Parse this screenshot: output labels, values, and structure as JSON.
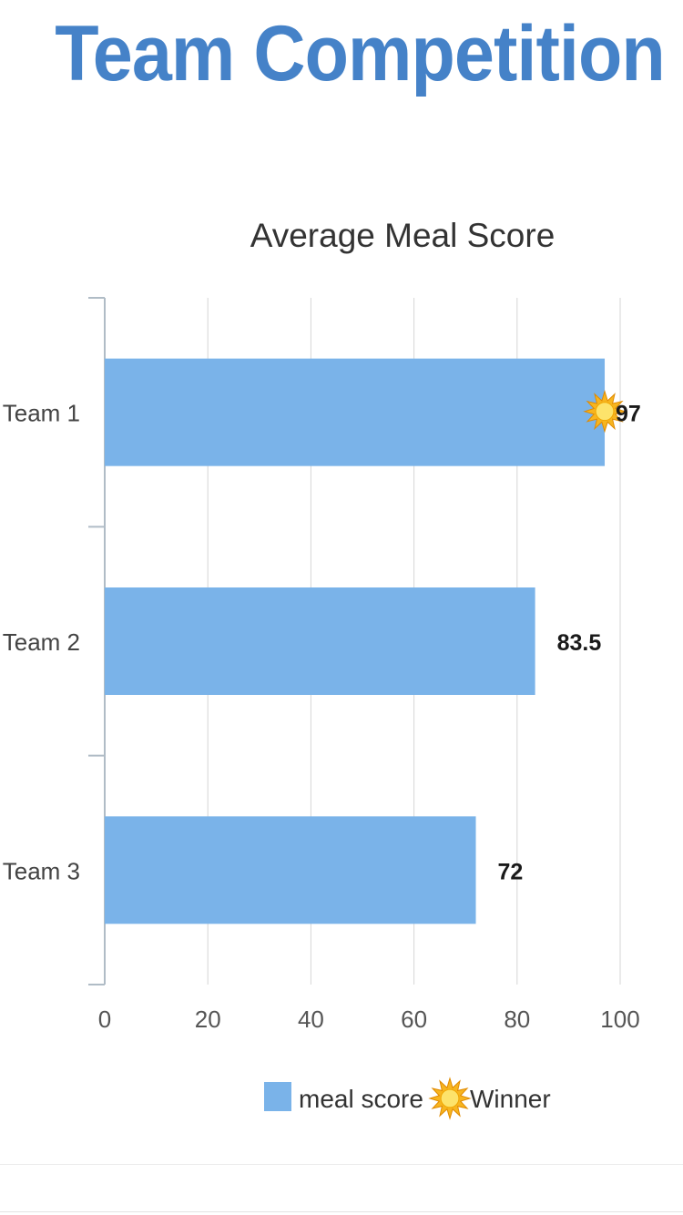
{
  "page": {
    "title": "Team Competition"
  },
  "chart_data": {
    "type": "bar",
    "orientation": "horizontal",
    "title": "Average Meal Score",
    "categories": [
      "Team 1",
      "Team 2",
      "Team 3"
    ],
    "series": [
      {
        "name": "meal score",
        "values": [
          97,
          83.5,
          72
        ]
      }
    ],
    "data_labels": [
      "97",
      "83.5",
      "72"
    ],
    "winner_category": "Team 1",
    "xlim": [
      0,
      100
    ],
    "xticks": [
      0,
      20,
      40,
      60,
      80,
      100
    ],
    "xtick_labels": [
      "0",
      "20",
      "40",
      "60",
      "80",
      "100"
    ],
    "grid": true,
    "legend": {
      "position": "bottom",
      "items": [
        {
          "label": "meal score",
          "marker": "square",
          "color": "#7ab3e9"
        },
        {
          "label": "Winner",
          "marker": "sun-icon"
        }
      ]
    },
    "colors": {
      "bar": "#7ab3e9",
      "grid": "#d6d6d6",
      "axis": "#b0bcc6",
      "sun": "#f7b51f"
    }
  }
}
